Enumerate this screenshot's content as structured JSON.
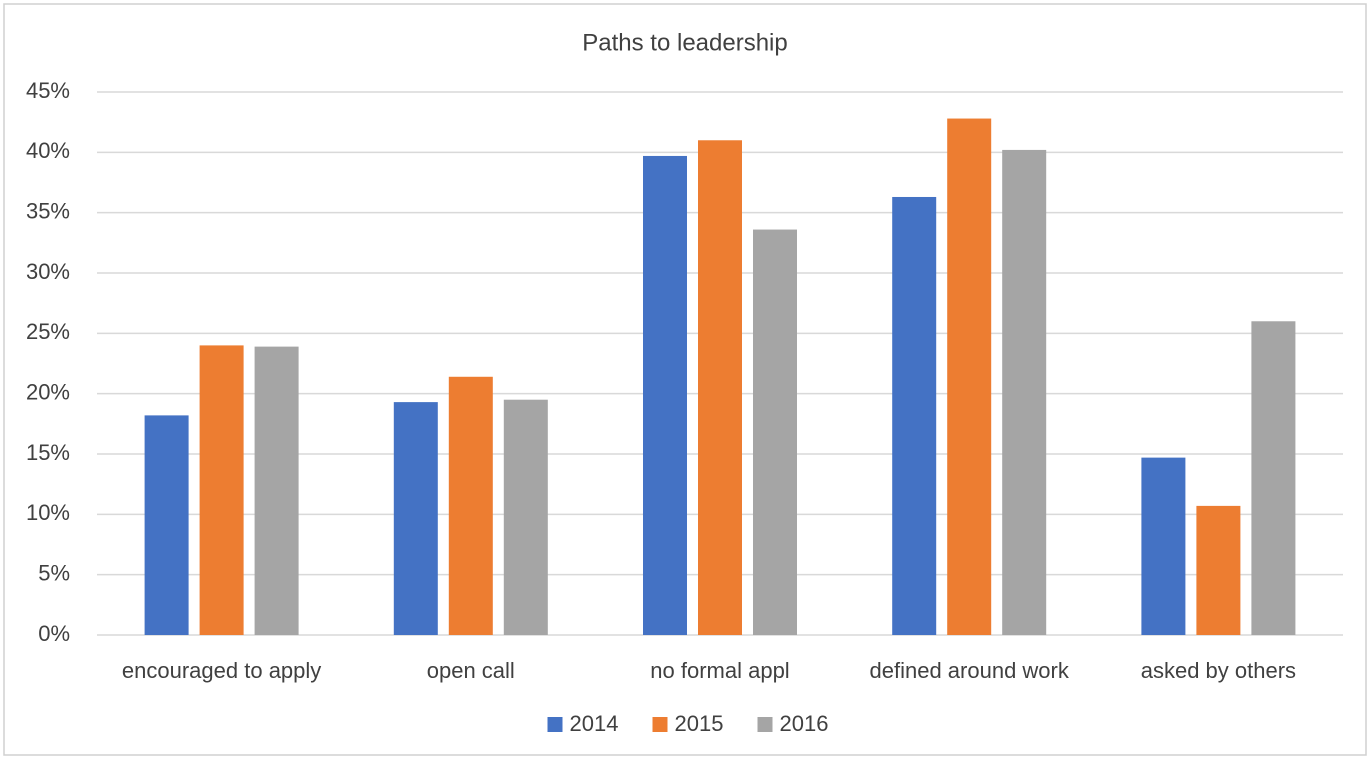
{
  "chart_data": {
    "type": "bar",
    "title": "Paths to leadership",
    "categories": [
      "encouraged to apply",
      "open call",
      "no formal appl",
      "defined around work",
      "asked by others"
    ],
    "series": [
      {
        "name": "2014",
        "color": "#4472c4",
        "values": [
          18.2,
          19.3,
          39.7,
          36.3,
          14.7
        ]
      },
      {
        "name": "2015",
        "color": "#ed7d31",
        "values": [
          24.0,
          21.4,
          41.0,
          42.8,
          10.7
        ]
      },
      {
        "name": "2016",
        "color": "#a5a5a5",
        "values": [
          23.9,
          19.5,
          33.6,
          40.2,
          26.0
        ]
      }
    ],
    "ylim": [
      0,
      45
    ],
    "yticks": [
      {
        "value": 0,
        "label": "0%"
      },
      {
        "value": 5,
        "label": "5%"
      },
      {
        "value": 10,
        "label": "10%"
      },
      {
        "value": 15,
        "label": "15%"
      },
      {
        "value": 20,
        "label": "20%"
      },
      {
        "value": 25,
        "label": "25%"
      },
      {
        "value": 30,
        "label": "30%"
      },
      {
        "value": 35,
        "label": "35%"
      },
      {
        "value": 40,
        "label": "40%"
      },
      {
        "value": 45,
        "label": "45%"
      }
    ],
    "grid": true,
    "legend": "bottom"
  }
}
